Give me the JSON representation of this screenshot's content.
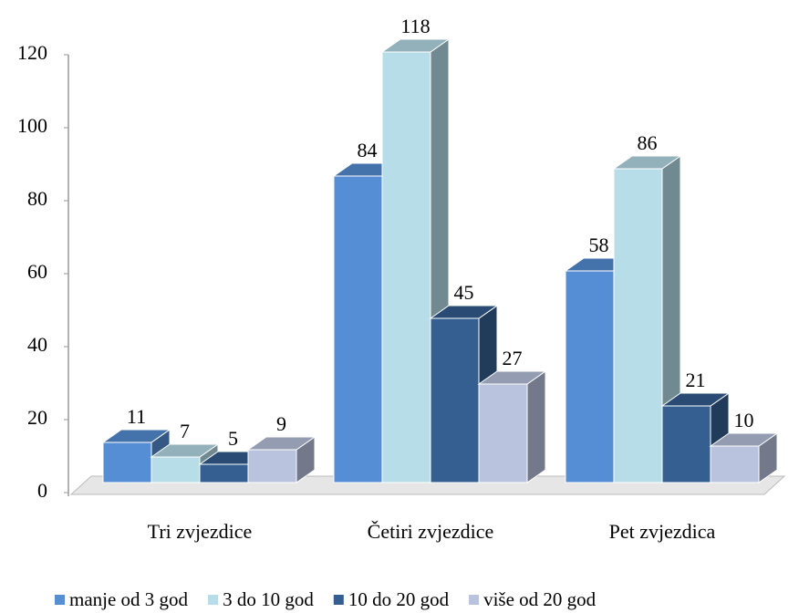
{
  "chart_data": {
    "type": "bar3d",
    "categories": [
      "Tri zvjezdice",
      "Četiri zvjezdice",
      "Pet zvjezdica"
    ],
    "series": [
      {
        "name": "manje od 3 god",
        "color": "#558ed5",
        "values": [
          11,
          84,
          58
        ]
      },
      {
        "name": "3 do 10 god",
        "color": "#b7dde8",
        "values": [
          7,
          118,
          86
        ]
      },
      {
        "name": "10 do 20 god",
        "color": "#355f91",
        "values": [
          5,
          45,
          21
        ]
      },
      {
        "name": "više od 20 god",
        "color": "#b9c3de",
        "values": [
          9,
          27,
          10
        ]
      }
    ],
    "ylim": [
      0,
      120
    ],
    "yticks": [
      0,
      20,
      40,
      60,
      80,
      100,
      120
    ],
    "legend": "bottom"
  }
}
